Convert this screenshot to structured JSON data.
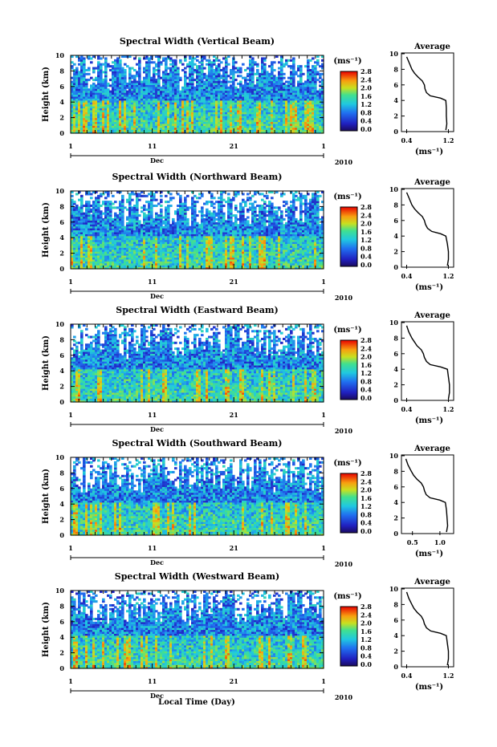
{
  "figure": {
    "xlabel": "Local Time (Day)",
    "month_label": "Dec",
    "year_label": "2010",
    "ylabel": "Height (km)",
    "colorbar_unit": "(ms⁻¹)",
    "avg_title": "Average",
    "avg_xlabel": "(ms⁻¹)"
  },
  "chart_data": [
    {
      "type": "heatmap",
      "title": "Spectral Width (Vertical Beam)",
      "xlabel": "Local Time (Day)",
      "ylabel": "Height (km)",
      "x_ticks": [
        "1",
        "11",
        "21",
        "1"
      ],
      "xlim_days": [
        1,
        32
      ],
      "y_ticks": [
        "0",
        "2",
        "4",
        "6",
        "8",
        "10"
      ],
      "ylim": [
        0,
        10
      ],
      "colorbar": {
        "unit": "(ms⁻¹)",
        "ticks": [
          "0.0",
          "0.4",
          "0.8",
          "1.2",
          "1.6",
          "2.0",
          "2.4",
          "2.8"
        ],
        "range": [
          0,
          3.0
        ]
      },
      "colors": {
        "low": "#2a1aa0",
        "mid": "#20d0d0",
        "high": "#e81010",
        "missing": "#ffffff"
      }
    },
    {
      "type": "heatmap",
      "title": "Spectral Width (Northward Beam)",
      "xlabel": "Local Time (Day)",
      "ylabel": "Height (km)",
      "x_ticks": [
        "1",
        "11",
        "21",
        "1"
      ],
      "xlim_days": [
        1,
        32
      ],
      "y_ticks": [
        "0",
        "2",
        "4",
        "6",
        "8",
        "10"
      ],
      "ylim": [
        0,
        10
      ],
      "colorbar": {
        "unit": "(ms⁻¹)",
        "ticks": [
          "0.0",
          "0.4",
          "0.8",
          "1.2",
          "1.6",
          "2.0",
          "2.4",
          "2.8"
        ],
        "range": [
          0,
          3.0
        ]
      }
    },
    {
      "type": "heatmap",
      "title": "Spectral Width (Eastward Beam)",
      "xlabel": "Local Time (Day)",
      "ylabel": "Height (km)",
      "x_ticks": [
        "1",
        "11",
        "21",
        "1"
      ],
      "xlim_days": [
        1,
        32
      ],
      "y_ticks": [
        "0",
        "2",
        "4",
        "6",
        "8",
        "10"
      ],
      "ylim": [
        0,
        10
      ],
      "colorbar": {
        "unit": "(ms⁻¹)",
        "ticks": [
          "0.0",
          "0.4",
          "0.8",
          "1.2",
          "1.6",
          "2.0",
          "2.4",
          "2.8"
        ],
        "range": [
          0,
          3.0
        ]
      }
    },
    {
      "type": "heatmap",
      "title": "Spectral Width (Southward Beam)",
      "xlabel": "Local Time (Day)",
      "ylabel": "Height (km)",
      "x_ticks": [
        "1",
        "11",
        "21",
        "1"
      ],
      "xlim_days": [
        1,
        32
      ],
      "y_ticks": [
        "0",
        "2",
        "4",
        "6",
        "8",
        "10"
      ],
      "ylim": [
        0,
        10
      ],
      "colorbar": {
        "unit": "(ms⁻¹)",
        "ticks": [
          "0.0",
          "0.4",
          "0.8",
          "1.2",
          "1.6",
          "2.0",
          "2.4",
          "2.8"
        ],
        "range": [
          0,
          3.0
        ]
      }
    },
    {
      "type": "heatmap",
      "title": "Spectral Width (Westward Beam)",
      "xlabel": "Local Time (Day)",
      "ylabel": "Height (km)",
      "x_ticks": [
        "1",
        "11",
        "21",
        "1"
      ],
      "xlim_days": [
        1,
        32
      ],
      "y_ticks": [
        "0",
        "2",
        "4",
        "6",
        "8",
        "10"
      ],
      "ylim": [
        0,
        10
      ],
      "colorbar": {
        "unit": "(ms⁻¹)",
        "ticks": [
          "0.0",
          "0.4",
          "0.8",
          "1.2",
          "1.6",
          "2.0",
          "2.4",
          "2.8"
        ],
        "range": [
          0,
          3.0
        ]
      }
    },
    {
      "type": "line",
      "title": "Average",
      "xlabel": "(ms⁻¹)",
      "ylabel": "Height (km)",
      "x_ticks": [
        "0.4",
        "1.2"
      ],
      "xlim": [
        0.3,
        1.3
      ],
      "y_ticks": [
        "0",
        "2",
        "4",
        "6",
        "8",
        "10"
      ],
      "ylim": [
        0,
        10
      ],
      "series": [
        {
          "x": [
            1.15,
            1.17,
            1.16,
            1.16,
            1.15,
            1.05,
            0.85,
            0.78,
            0.75,
            0.74,
            0.7,
            0.62,
            0.55,
            0.5,
            0.45,
            0.4
          ],
          "y": [
            0.2,
            1.0,
            2.0,
            3.0,
            4.0,
            4.3,
            4.6,
            5.0,
            5.5,
            6.0,
            6.5,
            7.0,
            7.5,
            8.0,
            8.8,
            9.6
          ]
        }
      ]
    },
    {
      "type": "line",
      "title": "Average",
      "xlabel": "(ms⁻¹)",
      "ylabel": "Height (km)",
      "x_ticks": [
        "0.4",
        "1.2"
      ],
      "xlim": [
        0.3,
        1.3
      ],
      "y_ticks": [
        "0",
        "2",
        "4",
        "6",
        "8",
        "10"
      ],
      "ylim": [
        0,
        10
      ],
      "series": [
        {
          "x": [
            1.18,
            1.2,
            1.2,
            1.18,
            1.15,
            1.05,
            0.88,
            0.8,
            0.76,
            0.74,
            0.7,
            0.62,
            0.55,
            0.5,
            0.45,
            0.4
          ],
          "y": [
            0.2,
            1.0,
            2.0,
            3.0,
            4.0,
            4.3,
            4.6,
            5.0,
            5.5,
            6.0,
            6.5,
            7.0,
            7.5,
            8.0,
            8.8,
            9.6
          ]
        }
      ]
    },
    {
      "type": "line",
      "title": "Average",
      "xlabel": "(ms⁻¹)",
      "ylabel": "Height (km)",
      "x_ticks": [
        "0.4",
        "1.2"
      ],
      "xlim": [
        0.3,
        1.3
      ],
      "y_ticks": [
        "0",
        "2",
        "4",
        "6",
        "8",
        "10"
      ],
      "ylim": [
        0,
        10
      ],
      "series": [
        {
          "x": [
            1.2,
            1.22,
            1.22,
            1.2,
            1.18,
            1.05,
            0.85,
            0.78,
            0.74,
            0.72,
            0.68,
            0.6,
            0.55,
            0.5,
            0.44,
            0.4
          ],
          "y": [
            0.2,
            1.0,
            2.0,
            3.0,
            4.0,
            4.3,
            4.6,
            5.0,
            5.5,
            6.0,
            6.5,
            7.0,
            7.5,
            8.0,
            8.8,
            9.6
          ]
        }
      ]
    },
    {
      "type": "line",
      "title": "Average",
      "xlabel": "(ms⁻¹)",
      "ylabel": "Height (km)",
      "x_ticks": [
        "0.5",
        "1.0"
      ],
      "xlim": [
        0.3,
        1.25
      ],
      "y_ticks": [
        "0",
        "2",
        "4",
        "6",
        "8",
        "10"
      ],
      "ylim": [
        0,
        10
      ],
      "series": [
        {
          "x": [
            1.12,
            1.14,
            1.13,
            1.12,
            1.1,
            1.0,
            0.82,
            0.75,
            0.72,
            0.7,
            0.66,
            0.58,
            0.52,
            0.48,
            0.42,
            0.38
          ],
          "y": [
            0.2,
            1.0,
            2.0,
            3.0,
            4.0,
            4.3,
            4.6,
            5.0,
            5.5,
            6.0,
            6.5,
            7.0,
            7.5,
            8.0,
            8.8,
            9.6
          ]
        }
      ]
    },
    {
      "type": "line",
      "title": "Average",
      "xlabel": "(ms⁻¹)",
      "ylabel": "Height (km)",
      "x_ticks": [
        "0.4",
        "1.2"
      ],
      "xlim": [
        0.3,
        1.3
      ],
      "y_ticks": [
        "0",
        "2",
        "4",
        "6",
        "8",
        "10"
      ],
      "ylim": [
        0,
        10
      ],
      "series": [
        {
          "x": [
            1.18,
            1.2,
            1.2,
            1.18,
            1.16,
            1.05,
            0.86,
            0.78,
            0.74,
            0.72,
            0.68,
            0.6,
            0.54,
            0.5,
            0.44,
            0.4
          ],
          "y": [
            0.2,
            1.0,
            2.0,
            3.0,
            4.0,
            4.3,
            4.6,
            5.0,
            5.5,
            6.0,
            6.5,
            7.0,
            7.5,
            8.0,
            8.8,
            9.6
          ]
        }
      ]
    }
  ]
}
